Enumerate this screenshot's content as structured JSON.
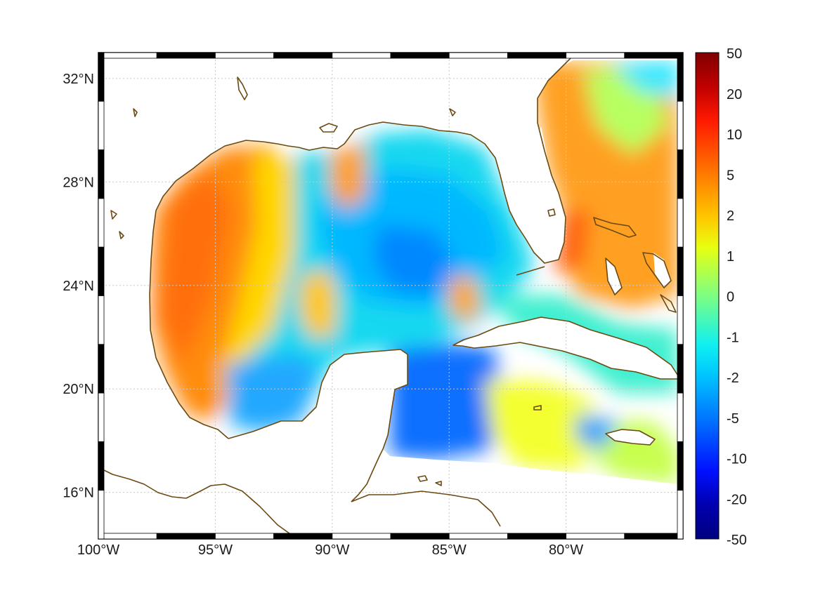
{
  "map": {
    "lon_ticks": [
      "100°W",
      "95°W",
      "90°W",
      "85°W",
      "80°W"
    ],
    "lat_ticks": [
      "32°N",
      "28°N",
      "24°N",
      "20°N",
      "16°N"
    ],
    "lon_values": [
      -100,
      -95,
      -90,
      -85,
      -80
    ],
    "lat_values": [
      32,
      28,
      24,
      20,
      16
    ],
    "extent": {
      "lon_min": -100,
      "lon_max": -75,
      "lat_min": 14.2,
      "lat_max": 33
    },
    "grid": true,
    "coast_color": "#6b4a12",
    "land_color": "#ffffff"
  },
  "colorbar": {
    "tick_labels": [
      "50",
      "20",
      "10",
      "5",
      "2",
      "1",
      "0",
      "-1",
      "-2",
      "-5",
      "-10",
      "-20",
      "-50"
    ],
    "colormap": "jet",
    "colors": [
      "#7f0000",
      "#ff0000",
      "#ff8000",
      "#ffff00",
      "#80ff80",
      "#00ffff",
      "#0080ff",
      "#0000ff",
      "#00007f"
    ]
  }
}
